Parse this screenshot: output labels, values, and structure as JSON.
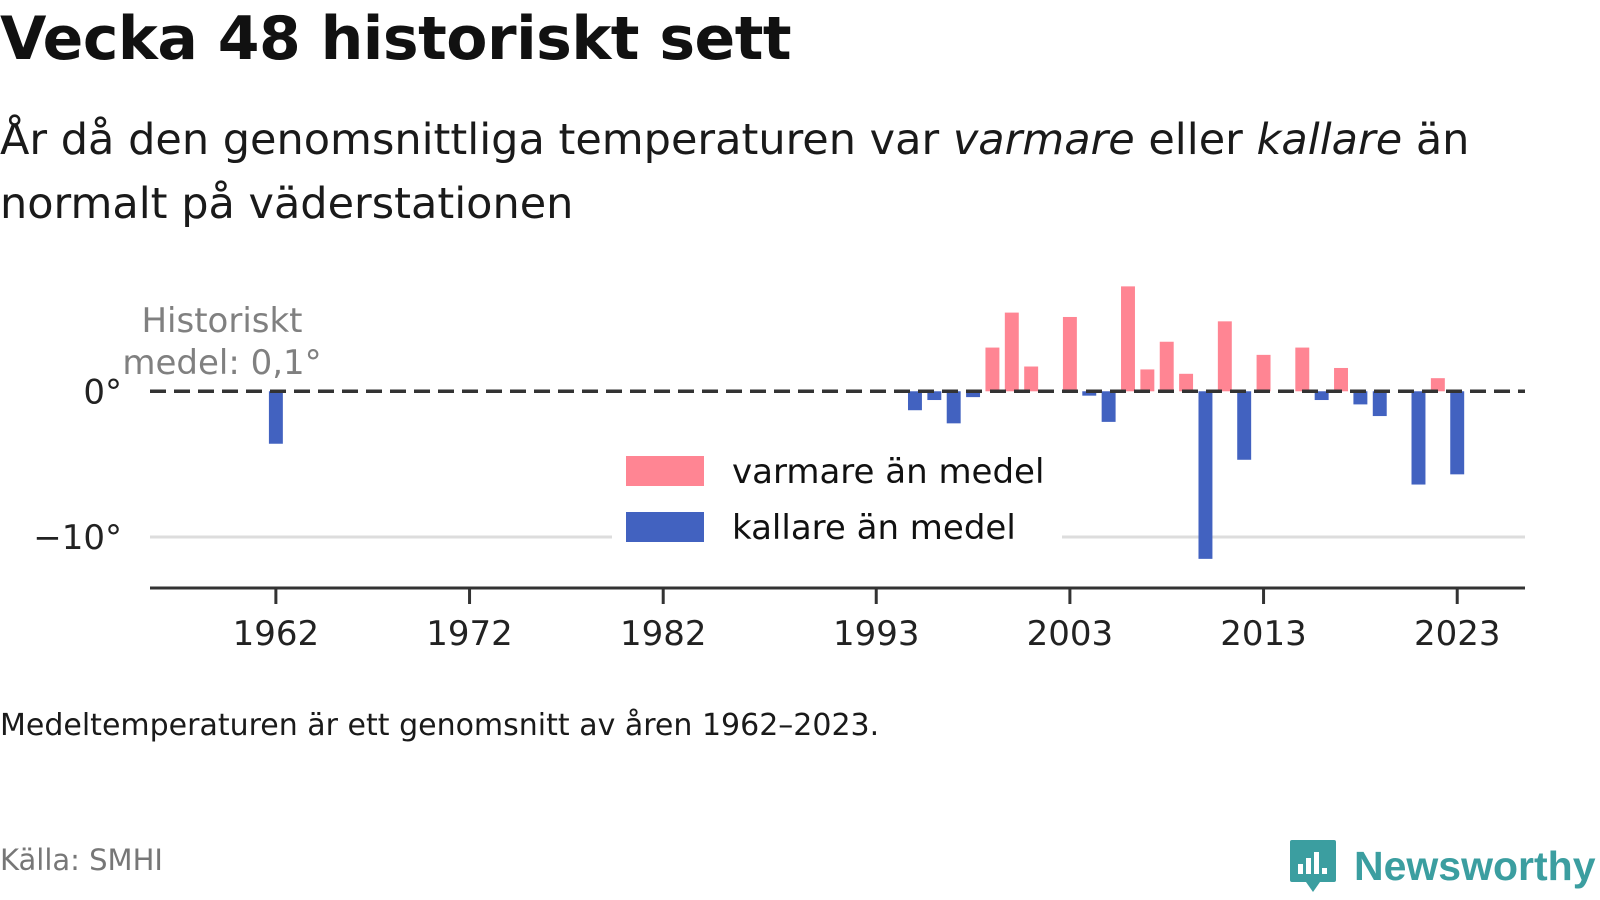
{
  "header": {
    "title": "Vecka 48 historiskt sett",
    "subtitle_part1": "År då den genomsnittliga temperaturen var ",
    "subtitle_warm": "varmare",
    "subtitle_part2": " eller ",
    "subtitle_cold": "kallare",
    "subtitle_part3": " än normalt på väderstationen"
  },
  "chart_data": {
    "type": "bar",
    "title": "Vecka 48 historiskt sett",
    "ylim": [
      -13.5,
      7.5
    ],
    "xlim": [
      1955.5,
      2026.5
    ],
    "y_ticks": [
      {
        "value": 0,
        "label": "0°"
      },
      {
        "value": -10,
        "label": "−10°"
      }
    ],
    "x_ticks": [
      {
        "value": 1962,
        "label": "1962"
      },
      {
        "value": 1972,
        "label": "1972"
      },
      {
        "value": 1982,
        "label": "1982"
      },
      {
        "value": 1993,
        "label": "1993"
      },
      {
        "value": 2003,
        "label": "2003"
      },
      {
        "value": 2013,
        "label": "2013"
      },
      {
        "value": 2023,
        "label": "2023"
      }
    ],
    "grid": true,
    "reference_line": {
      "value": 0,
      "label_line1": "Historiskt",
      "label_line2": "medel: 0,1°"
    },
    "legend": {
      "placement": "bottom-center",
      "warm_label": "varmare än medel",
      "cold_label": "kallare än medel"
    },
    "colors": {
      "warm": "#ff8593",
      "cold": "#4262c0",
      "axis": "#333333",
      "grid": "#dddddd",
      "ref": "#333333"
    },
    "series": [
      {
        "x": 1962,
        "value": -3.6
      },
      {
        "x": 1995,
        "value": -1.3
      },
      {
        "x": 1996,
        "value": -0.6
      },
      {
        "x": 1997,
        "value": -2.2
      },
      {
        "x": 1998,
        "value": -0.4
      },
      {
        "x": 1999,
        "value": 3.0
      },
      {
        "x": 2000,
        "value": 5.4
      },
      {
        "x": 2001,
        "value": 1.7
      },
      {
        "x": 2003,
        "value": 5.1
      },
      {
        "x": 2004,
        "value": -0.3
      },
      {
        "x": 2005,
        "value": -2.1
      },
      {
        "x": 2006,
        "value": 7.2
      },
      {
        "x": 2007,
        "value": 1.5
      },
      {
        "x": 2008,
        "value": 3.4
      },
      {
        "x": 2009,
        "value": 1.2
      },
      {
        "x": 2010,
        "value": -11.5
      },
      {
        "x": 2011,
        "value": 4.8
      },
      {
        "x": 2012,
        "value": -4.7
      },
      {
        "x": 2013,
        "value": 2.5
      },
      {
        "x": 2015,
        "value": 3.0
      },
      {
        "x": 2016,
        "value": -0.6
      },
      {
        "x": 2017,
        "value": 1.6
      },
      {
        "x": 2018,
        "value": -0.9
      },
      {
        "x": 2019,
        "value": -1.7
      },
      {
        "x": 2021,
        "value": -6.4
      },
      {
        "x": 2022,
        "value": 0.9
      },
      {
        "x": 2023,
        "value": -5.7
      }
    ]
  },
  "footer": {
    "note": "Medeltemperaturen är ett genomsnitt av åren 1962–2023.",
    "source": "Källa: SMHI",
    "brand": "Newsworthy",
    "brand_color": "#3b9ea0",
    "brand_icon": "bar-chart-speech-bubble-icon"
  }
}
